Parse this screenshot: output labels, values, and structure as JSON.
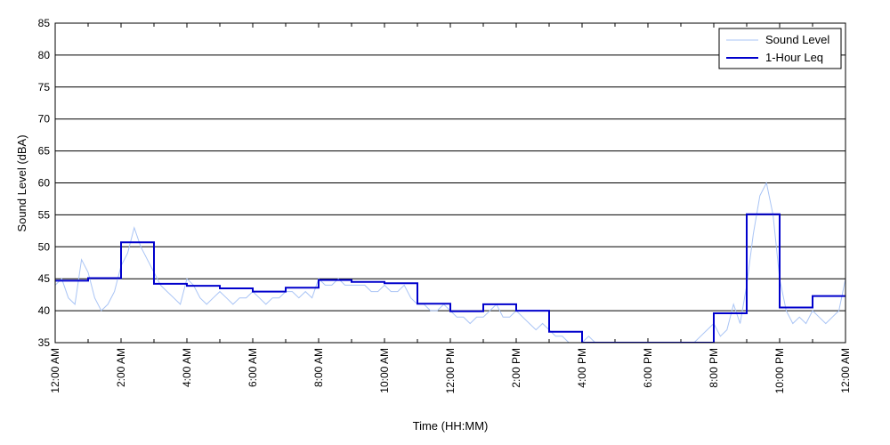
{
  "chart_data": {
    "type": "line",
    "title": "",
    "xlabel": "Time (HH:MM)",
    "ylabel": "Sound Level (dBA)",
    "ylim": [
      35,
      85
    ],
    "yticks": [
      35,
      40,
      45,
      50,
      55,
      60,
      65,
      70,
      75,
      80,
      85
    ],
    "xlim_hours": [
      0,
      24
    ],
    "xticks": [
      {
        "hour": 0,
        "label": "12:00 AM"
      },
      {
        "hour": 2,
        "label": "2:00 AM"
      },
      {
        "hour": 4,
        "label": "4:00 AM"
      },
      {
        "hour": 6,
        "label": "6:00 AM"
      },
      {
        "hour": 8,
        "label": "8:00 AM"
      },
      {
        "hour": 10,
        "label": "10:00 AM"
      },
      {
        "hour": 12,
        "label": "12:00 PM"
      },
      {
        "hour": 14,
        "label": "2:00 PM"
      },
      {
        "hour": 16,
        "label": "4:00 PM"
      },
      {
        "hour": 18,
        "label": "6:00 PM"
      },
      {
        "hour": 20,
        "label": "8:00 PM"
      },
      {
        "hour": 22,
        "label": "10:00 PM"
      },
      {
        "hour": 24,
        "label": "12:00 AM"
      }
    ],
    "grid": "horizontal",
    "legend_position": "top-right",
    "series": [
      {
        "name": "Sound Level",
        "color": "#a9c4f5",
        "points": [
          [
            0.0,
            44
          ],
          [
            0.2,
            45
          ],
          [
            0.4,
            42
          ],
          [
            0.6,
            41
          ],
          [
            0.8,
            48
          ],
          [
            1.0,
            46
          ],
          [
            1.2,
            42
          ],
          [
            1.4,
            40
          ],
          [
            1.6,
            41
          ],
          [
            1.8,
            43
          ],
          [
            2.0,
            47
          ],
          [
            2.2,
            49
          ],
          [
            2.4,
            53
          ],
          [
            2.6,
            50
          ],
          [
            2.8,
            48
          ],
          [
            3.0,
            46
          ],
          [
            3.2,
            44
          ],
          [
            3.4,
            43
          ],
          [
            3.6,
            42
          ],
          [
            3.8,
            41
          ],
          [
            4.0,
            45
          ],
          [
            4.2,
            44
          ],
          [
            4.4,
            42
          ],
          [
            4.6,
            41
          ],
          [
            4.8,
            42
          ],
          [
            5.0,
            43
          ],
          [
            5.2,
            42
          ],
          [
            5.4,
            41
          ],
          [
            5.6,
            42
          ],
          [
            5.8,
            42
          ],
          [
            6.0,
            43
          ],
          [
            6.2,
            42
          ],
          [
            6.4,
            41
          ],
          [
            6.6,
            42
          ],
          [
            6.8,
            42
          ],
          [
            7.0,
            43
          ],
          [
            7.2,
            43
          ],
          [
            7.4,
            42
          ],
          [
            7.6,
            43
          ],
          [
            7.8,
            42
          ],
          [
            8.0,
            45
          ],
          [
            8.2,
            44
          ],
          [
            8.4,
            44
          ],
          [
            8.6,
            45
          ],
          [
            8.8,
            44
          ],
          [
            9.0,
            44
          ],
          [
            9.2,
            44
          ],
          [
            9.4,
            44
          ],
          [
            9.6,
            43
          ],
          [
            9.8,
            43
          ],
          [
            10.0,
            44
          ],
          [
            10.2,
            43
          ],
          [
            10.4,
            43
          ],
          [
            10.6,
            44
          ],
          [
            10.8,
            42
          ],
          [
            11.0,
            41
          ],
          [
            11.2,
            41
          ],
          [
            11.4,
            40
          ],
          [
            11.6,
            40
          ],
          [
            11.8,
            41
          ],
          [
            12.0,
            40
          ],
          [
            12.2,
            39
          ],
          [
            12.4,
            39
          ],
          [
            12.6,
            38
          ],
          [
            12.8,
            39
          ],
          [
            13.0,
            39
          ],
          [
            13.2,
            40
          ],
          [
            13.4,
            41
          ],
          [
            13.6,
            39
          ],
          [
            13.8,
            39
          ],
          [
            14.0,
            40
          ],
          [
            14.2,
            39
          ],
          [
            14.4,
            38
          ],
          [
            14.6,
            37
          ],
          [
            14.8,
            38
          ],
          [
            15.0,
            37
          ],
          [
            15.2,
            36
          ],
          [
            15.4,
            36
          ],
          [
            15.6,
            35
          ],
          [
            15.8,
            35
          ],
          [
            16.0,
            35
          ],
          [
            16.2,
            36
          ],
          [
            16.4,
            35
          ],
          [
            16.6,
            35
          ],
          [
            16.8,
            35
          ],
          [
            19.4,
            35
          ],
          [
            19.6,
            36
          ],
          [
            19.8,
            37
          ],
          [
            20.0,
            38
          ],
          [
            20.2,
            36
          ],
          [
            20.4,
            37
          ],
          [
            20.6,
            41
          ],
          [
            20.8,
            38
          ],
          [
            21.0,
            44
          ],
          [
            21.2,
            52
          ],
          [
            21.4,
            58
          ],
          [
            21.6,
            60
          ],
          [
            21.8,
            55
          ],
          [
            22.0,
            45
          ],
          [
            22.2,
            40
          ],
          [
            22.4,
            38
          ],
          [
            22.6,
            39
          ],
          [
            22.8,
            38
          ],
          [
            23.0,
            40
          ],
          [
            23.2,
            39
          ],
          [
            23.4,
            38
          ],
          [
            23.6,
            39
          ],
          [
            23.8,
            40
          ],
          [
            24.0,
            45
          ]
        ]
      },
      {
        "name": "1-Hour Leq",
        "color": "#0000cc",
        "hourly": [
          44.7,
          45.1,
          50.7,
          44.2,
          43.9,
          43.5,
          43.0,
          43.6,
          44.8,
          44.5,
          44.3,
          41.1,
          39.9,
          41.0,
          40.0,
          36.7,
          35.0,
          35.0,
          35.0,
          35.0,
          39.6,
          55.1,
          40.5,
          42.3
        ]
      }
    ]
  }
}
